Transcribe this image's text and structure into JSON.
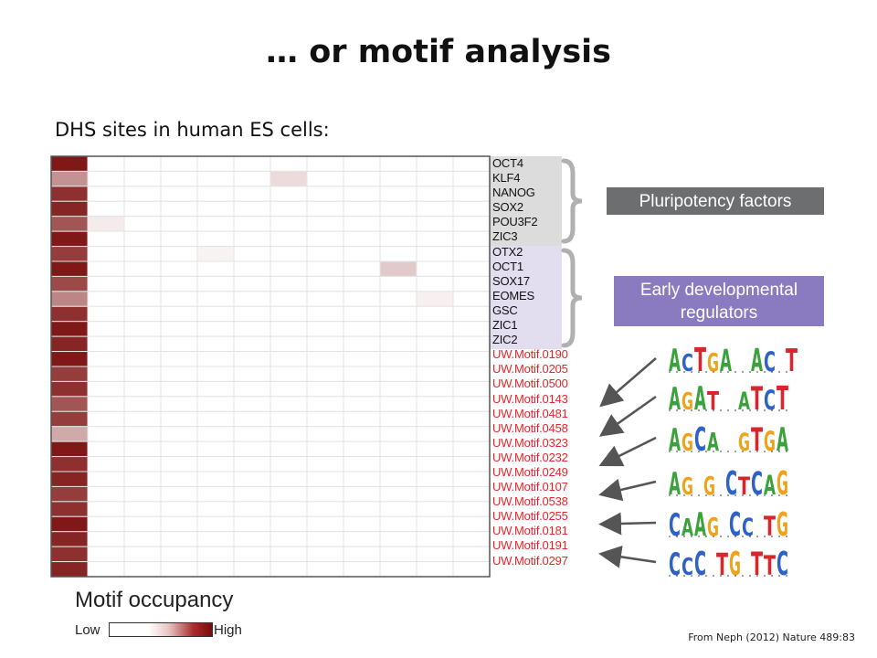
{
  "slide": {
    "title": "… or motif analysis",
    "subtitle": "DHS sites in human ES cells:",
    "citation": "From Neph (2012) Nature 489:83"
  },
  "groups": [
    {
      "label": "Pluripotency factors",
      "color": "#6d6e70"
    },
    {
      "label": "Early developmental regulators",
      "color": "#8a7bc0"
    }
  ],
  "row_colors": {
    "pluripotency": "#111111",
    "developmental": "#111111",
    "novel_motif": "#e8262a"
  },
  "heatmap": {
    "rows": [
      "OCT4",
      "KLF4",
      "NANOG",
      "SOX2",
      "POU3F2",
      "ZIC3",
      "OTX2",
      "OCT1",
      "SOX17",
      "EOMES",
      "GSC",
      "ZIC1",
      "ZIC2",
      "UW.Motif.0190",
      "UW.Motif.0205",
      "UW.Motif.0500",
      "UW.Motif.0143",
      "UW.Motif.0481",
      "UW.Motif.0458",
      "UW.Motif.0323",
      "UW.Motif.0232",
      "UW.Motif.0249",
      "UW.Motif.0107",
      "UW.Motif.0538",
      "UW.Motif.0255",
      "UW.Motif.0181",
      "UW.Motif.0191",
      "UW.Motif.0297"
    ],
    "row_group": [
      "pluripotency",
      "pluripotency",
      "pluripotency",
      "pluripotency",
      "pluripotency",
      "pluripotency",
      "developmental",
      "developmental",
      "developmental",
      "developmental",
      "developmental",
      "developmental",
      "developmental",
      "novel_motif",
      "novel_motif",
      "novel_motif",
      "novel_motif",
      "novel_motif",
      "novel_motif",
      "novel_motif",
      "novel_motif",
      "novel_motif",
      "novel_motif",
      "novel_motif",
      "novel_motif",
      "novel_motif",
      "novel_motif",
      "novel_motif"
    ],
    "num_columns": 12,
    "first_column_occupancy": [
      0.95,
      0.45,
      0.85,
      0.9,
      0.7,
      0.95,
      0.8,
      0.95,
      0.75,
      0.5,
      0.85,
      0.95,
      0.9,
      0.95,
      0.8,
      0.85,
      0.7,
      0.8,
      0.35,
      0.95,
      0.85,
      0.9,
      0.8,
      0.85,
      0.95,
      0.9,
      0.85,
      0.9
    ],
    "other_high_cells": [
      {
        "row": 1,
        "col": 6,
        "occupancy": 0.15
      },
      {
        "row": 4,
        "col": 1,
        "occupancy": 0.08
      },
      {
        "row": 6,
        "col": 4,
        "occupancy": 0.05
      },
      {
        "row": 7,
        "col": 9,
        "occupancy": 0.22
      },
      {
        "row": 9,
        "col": 10,
        "occupancy": 0.06
      }
    ],
    "occupancy_colors": {
      "low": "#ffffff",
      "high": "#7a0c0c"
    }
  },
  "legend": {
    "title": "Motif occupancy",
    "low_label": "Low",
    "high_label": "High"
  },
  "logos": [
    {
      "sequence": "ACTGA  AC T",
      "target_row": 16
    },
    {
      "sequence": "AGAT  ATCT",
      "target_row": 18
    },
    {
      "sequence": "AGCA  GTGA",
      "target_row": 20
    },
    {
      "sequence": "AG G CTCAG",
      "target_row": 22
    },
    {
      "sequence": "CAAG CC TG",
      "target_row": 24
    },
    {
      "sequence": "CCC TG TTC",
      "target_row": 26
    }
  ],
  "base_colors": {
    "A": "#3aa23a",
    "C": "#2f62c7",
    "G": "#f0a21a",
    "T": "#d7262c"
  },
  "brace_color": "#b0b0b0",
  "arrow_color": "#555555"
}
